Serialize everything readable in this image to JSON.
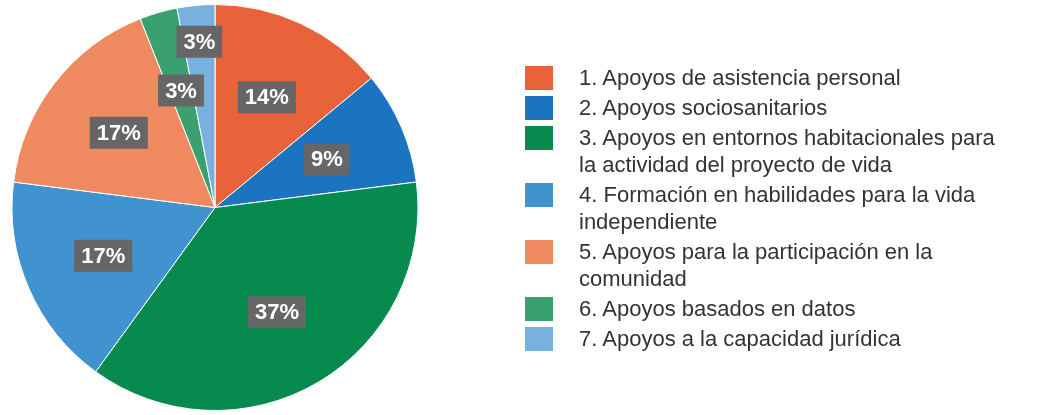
{
  "chart_data": {
    "type": "pie",
    "categories": [
      "1. Apoyos de asistencia personal",
      "2. Apoyos sociosanitarios",
      "3. Apoyos en entornos habitacionales para la actividad del proyecto de vida",
      "4. Formación en habilidades para la vida independiente",
      "5. Apoyos para la participación en la comunidad",
      "6. Apoyos basados en datos",
      "7. Apoyos a la capacidad jurídica"
    ],
    "values": [
      14,
      9,
      37,
      17,
      17,
      3,
      3
    ],
    "colors": [
      "#e9633a",
      "#1a74c0",
      "#068a4e",
      "#4193cf",
      "#ef8a60",
      "#3aa070",
      "#78b1e0"
    ],
    "value_labels": [
      "14%",
      "9%",
      "37%",
      "17%",
      "17%",
      "3%",
      "3%"
    ],
    "legend": "right"
  }
}
